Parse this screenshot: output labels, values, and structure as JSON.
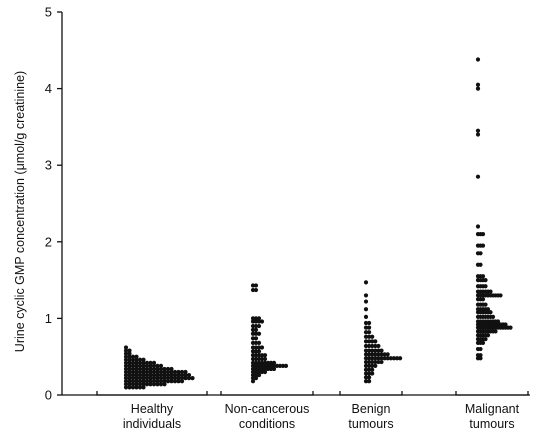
{
  "chart_data": {
    "type": "scatter",
    "ylabel": "Urine cyclic GMP concentration (μmol/g creatinine)",
    "ylim": [
      0,
      5
    ],
    "yticks": [
      "0",
      "1",
      "2",
      "3",
      "4",
      "5"
    ],
    "categories": [
      {
        "line1": "Healthy",
        "line2": "individuals"
      },
      {
        "line1": "Non-cancerous",
        "line2": "conditions"
      },
      {
        "line1": "Benign",
        "line2": "tumours"
      },
      {
        "line1": "Malignant",
        "line2": "tumours"
      }
    ],
    "groups": [
      {
        "bins": [
          [
            0.62,
            1
          ],
          [
            0.58,
            2
          ],
          [
            0.54,
            2
          ],
          [
            0.5,
            4
          ],
          [
            0.46,
            6
          ],
          [
            0.42,
            9
          ],
          [
            0.38,
            11
          ],
          [
            0.34,
            14
          ],
          [
            0.3,
            18
          ],
          [
            0.26,
            19
          ],
          [
            0.22,
            20
          ],
          [
            0.18,
            17
          ],
          [
            0.14,
            12
          ],
          [
            0.1,
            6
          ]
        ]
      },
      {
        "bins": [
          [
            1.43,
            2
          ],
          [
            1.37,
            2
          ],
          [
            1.0,
            3
          ],
          [
            0.96,
            4
          ],
          [
            0.9,
            3
          ],
          [
            0.85,
            2
          ],
          [
            0.8,
            3
          ],
          [
            0.74,
            2
          ],
          [
            0.68,
            3
          ],
          [
            0.62,
            4
          ],
          [
            0.57,
            3
          ],
          [
            0.52,
            5
          ],
          [
            0.47,
            5
          ],
          [
            0.42,
            8
          ],
          [
            0.38,
            12
          ],
          [
            0.34,
            8
          ],
          [
            0.3,
            5
          ],
          [
            0.26,
            3
          ],
          [
            0.22,
            2
          ],
          [
            0.18,
            1
          ]
        ]
      },
      {
        "bins": [
          [
            1.47,
            1
          ],
          [
            1.3,
            1
          ],
          [
            1.22,
            1
          ],
          [
            1.12,
            1
          ],
          [
            1.02,
            1
          ],
          [
            0.94,
            2
          ],
          [
            0.88,
            2
          ],
          [
            0.82,
            2
          ],
          [
            0.76,
            3
          ],
          [
            0.7,
            4
          ],
          [
            0.64,
            5
          ],
          [
            0.58,
            6
          ],
          [
            0.53,
            8
          ],
          [
            0.48,
            12
          ],
          [
            0.43,
            6
          ],
          [
            0.38,
            4
          ],
          [
            0.33,
            3
          ],
          [
            0.28,
            3
          ],
          [
            0.23,
            2
          ],
          [
            0.18,
            2
          ]
        ]
      },
      {
        "bins": [
          [
            4.38,
            1
          ],
          [
            4.05,
            1
          ],
          [
            4.0,
            1
          ],
          [
            3.45,
            1
          ],
          [
            3.4,
            1
          ],
          [
            2.85,
            1
          ],
          [
            2.2,
            1
          ],
          [
            2.1,
            3
          ],
          [
            1.95,
            3
          ],
          [
            1.85,
            2
          ],
          [
            1.7,
            2
          ],
          [
            1.55,
            3
          ],
          [
            1.5,
            4
          ],
          [
            1.42,
            4
          ],
          [
            1.35,
            6
          ],
          [
            1.3,
            10
          ],
          [
            1.25,
            3
          ],
          [
            1.18,
            4
          ],
          [
            1.12,
            5
          ],
          [
            1.08,
            6
          ],
          [
            1.02,
            7
          ],
          [
            0.96,
            9
          ],
          [
            0.92,
            12
          ],
          [
            0.88,
            14
          ],
          [
            0.83,
            8
          ],
          [
            0.78,
            5
          ],
          [
            0.73,
            4
          ],
          [
            0.68,
            3
          ],
          [
            0.6,
            2
          ],
          [
            0.52,
            2
          ],
          [
            0.48,
            2
          ]
        ]
      }
    ]
  }
}
